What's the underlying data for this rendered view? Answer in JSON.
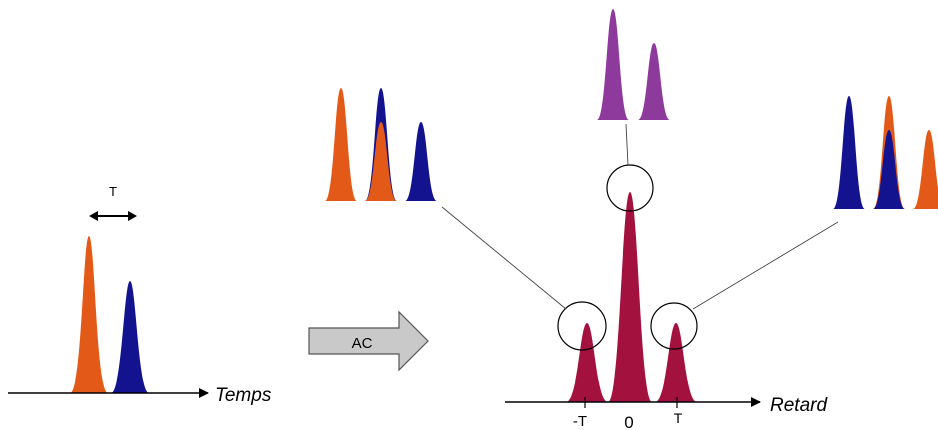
{
  "labels": {
    "tau_input": "T",
    "input_axis": "Temps",
    "operation": "AC",
    "output_axis": "Retard",
    "tick_minus_tau": "-T",
    "tick_zero": "0",
    "tick_plus_tau": "T"
  },
  "colors": {
    "orange": "#E35A18",
    "blue": "#13138F",
    "purple": "#8E3A9C",
    "crimson": "#A3123F",
    "arrow_fill": "#C9C9C9"
  }
}
